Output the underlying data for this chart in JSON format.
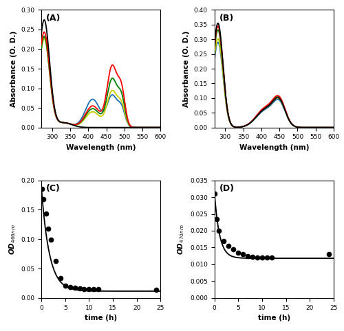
{
  "panel_A": {
    "label": "(A)",
    "xlabel": "Wavelength (nm)",
    "ylabel": "Absorbance (O. D.)",
    "xlim": [
      270,
      600
    ],
    "ylim": [
      0.0,
      0.3
    ],
    "yticks": [
      0.0,
      0.05,
      0.1,
      0.15,
      0.2,
      0.25,
      0.3
    ],
    "xticks": [
      300,
      350,
      400,
      450,
      500,
      550,
      600
    ],
    "line_colors": [
      "black",
      "red",
      "green",
      "#cccc00",
      "#1a6faf"
    ],
    "uv_amps": [
      0.274,
      0.243,
      0.232,
      0.226,
      0.228
    ],
    "uv_wl": 278,
    "uv_sig": 15,
    "p412_amps": [
      0.0,
      0.055,
      0.048,
      0.04,
      0.072
    ],
    "p412_wl": 412,
    "p412_sig": 20,
    "p466_amps": [
      0.0,
      0.155,
      0.122,
      0.092,
      0.08
    ],
    "p466_wl": 466,
    "p466_sig": 14,
    "p490_factor": 0.55,
    "p490_wl": 492,
    "p490_sig": 10,
    "sh_amp": 0.012,
    "sh_wl": 332,
    "sh_sig": 22
  },
  "panel_B": {
    "label": "(B)",
    "xlabel": "Wavelength (nm)",
    "ylabel": "Absorbance (O. D.)",
    "xlim": [
      270,
      600
    ],
    "ylim": [
      0.0,
      0.4
    ],
    "yticks": [
      0.0,
      0.05,
      0.1,
      0.15,
      0.2,
      0.25,
      0.3,
      0.35,
      0.4
    ],
    "xticks": [
      300,
      350,
      400,
      450,
      500,
      550,
      600
    ],
    "line_colors": [
      "black",
      "red",
      "green",
      "#cccc00",
      "#1a6faf"
    ],
    "uv_amps": [
      0.355,
      0.345,
      0.332,
      0.302,
      0.29
    ],
    "uv_wl": 280,
    "uv_sig": 14,
    "p412_amps": [
      0.06,
      0.065,
      0.063,
      0.06,
      0.057
    ],
    "p412_wl": 412,
    "p412_sig": 26,
    "p450_amps": [
      0.078,
      0.083,
      0.081,
      0.077,
      0.073
    ],
    "p450_wl": 450,
    "p450_sig": 17
  },
  "panel_C": {
    "label": "(C)",
    "xlabel": "time (h)",
    "ylabel": "OD$_{466nm}$",
    "xlim": [
      0,
      25
    ],
    "ylim": [
      0.0,
      0.2
    ],
    "yticks": [
      0.0,
      0.05,
      0.1,
      0.15,
      0.2
    ],
    "xticks": [
      0,
      5,
      10,
      15,
      20,
      25
    ],
    "scatter_x": [
      0.08,
      0.5,
      1.0,
      1.5,
      2.0,
      3.0,
      4.0,
      5.0,
      6.0,
      7.0,
      8.0,
      9.0,
      10.0,
      11.0,
      12.0,
      24.0
    ],
    "scatter_y": [
      0.186,
      0.168,
      0.143,
      0.118,
      0.099,
      0.063,
      0.034,
      0.021,
      0.018,
      0.017,
      0.016,
      0.015,
      0.015,
      0.015,
      0.015,
      0.014
    ],
    "fit_A": 0.178,
    "fit_k": 0.6,
    "fit_C": 0.0115,
    "fit_t0": 0.0
  },
  "panel_D": {
    "label": "(D)",
    "xlabel": "time (h)",
    "ylabel": "OD$_{470nm}$",
    "xlim": [
      0,
      25
    ],
    "ylim": [
      0.0,
      0.035
    ],
    "yticks": [
      0.0,
      0.005,
      0.01,
      0.015,
      0.02,
      0.025,
      0.03,
      0.035
    ],
    "xticks": [
      0,
      5,
      10,
      15,
      20,
      25
    ],
    "scatter_x": [
      0.05,
      0.5,
      1.0,
      2.0,
      3.0,
      4.0,
      5.0,
      6.0,
      7.0,
      8.0,
      9.0,
      10.0,
      11.0,
      12.0,
      24.0
    ],
    "scatter_y": [
      0.031,
      0.0235,
      0.02,
      0.017,
      0.0155,
      0.0145,
      0.0135,
      0.013,
      0.0125,
      0.0122,
      0.012,
      0.012,
      0.012,
      0.012,
      0.013
    ],
    "fit_A": 0.02,
    "fit_k": 0.95,
    "fit_C": 0.0118,
    "fit_t0": 0.0
  },
  "figure_bg": "white"
}
